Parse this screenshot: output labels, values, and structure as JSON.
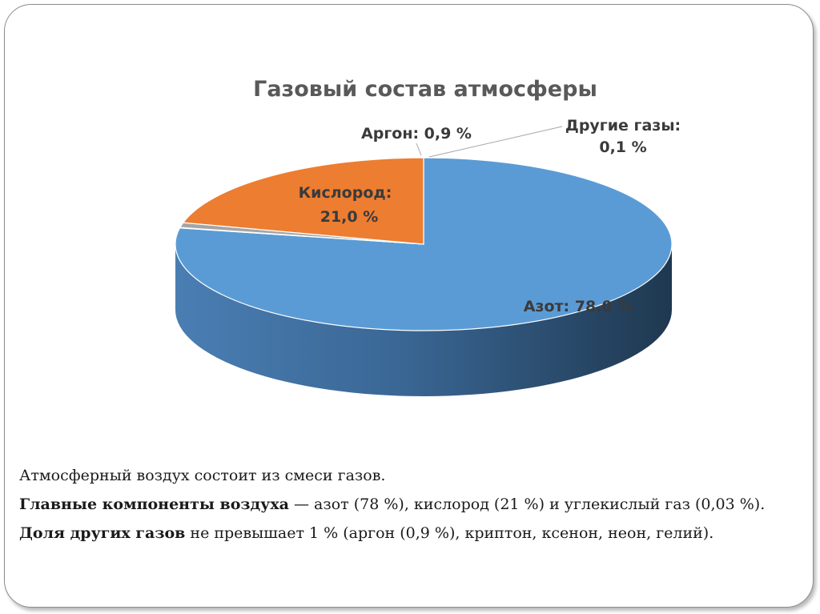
{
  "chart_data": {
    "type": "pie",
    "title": "Газовый состав атмосферы",
    "three_d": true,
    "slices": [
      {
        "name": "Азот",
        "value": 78.0,
        "label": "Азот: 78,0 %",
        "color": "#5b9bd5"
      },
      {
        "name": "Другие газы",
        "value": 0.1,
        "label_line1": "Другие газы:",
        "label_line2": "0,1 %",
        "color": "#ffc000"
      },
      {
        "name": "Аргон",
        "value": 0.9,
        "label": "Аргон: 0,9 %",
        "color": "#a5a5a5"
      },
      {
        "name": "Кислород",
        "value": 21.0,
        "label_line1": "Кислород:",
        "label_line2": "21,0 %",
        "color": "#ed7d31"
      }
    ]
  },
  "text": {
    "line1": "Атмосферный воздух состоит из смеси газов.",
    "p2_bold": "Главные компоненты воздуха",
    "p2_rest": " — азот (78 %),  кислород (21 %) и углекислый газ (0,03 %).",
    "p3_bold": "Доля других газов",
    "p3_rest": " не превышает 1 % (аргон (0,9 %), криптон, ксенон, неон, гелий)."
  }
}
